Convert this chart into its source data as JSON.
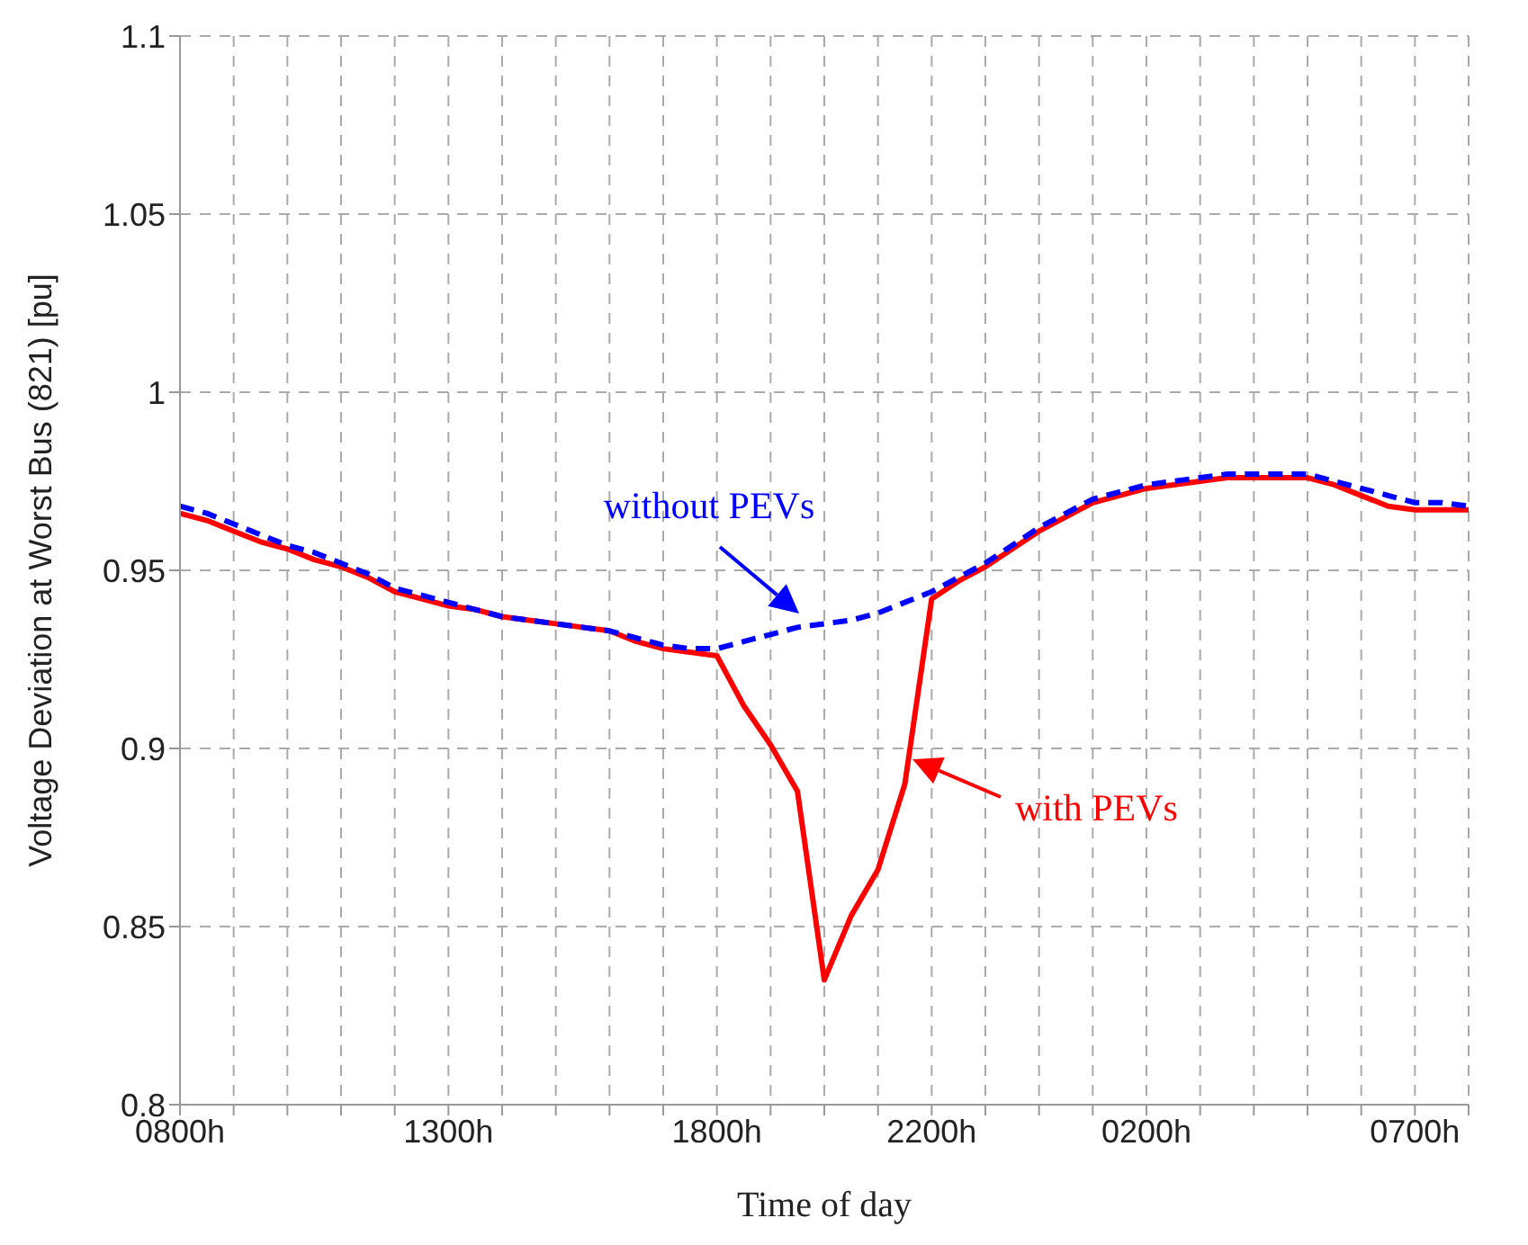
{
  "chart_data": {
    "type": "line",
    "xlabel": "Time of day",
    "ylabel": "Voltage Deviation at Worst Bus (821) [pu]",
    "categories": [
      "0800h",
      null,
      null,
      null,
      null,
      null,
      null,
      null,
      null,
      null,
      "1300h",
      null,
      null,
      null,
      null,
      null,
      null,
      null,
      null,
      null,
      "1800h",
      null,
      null,
      null,
      null,
      null,
      null,
      null,
      "2200h",
      null,
      null,
      null,
      null,
      null,
      null,
      null,
      "0200h",
      null,
      null,
      null,
      null,
      null,
      null,
      null,
      null,
      null,
      "0700h",
      null,
      null
    ],
    "ylim": [
      0.8,
      1.1
    ],
    "yticks": [
      0.8,
      0.85,
      0.9,
      0.95,
      1,
      1.05,
      1.1
    ],
    "grid": true,
    "legend": false,
    "marker": "none",
    "series": [
      {
        "color": "#ff0000",
        "line_style": "solid",
        "values": [
          0.966,
          0.964,
          0.961,
          0.958,
          0.956,
          0.953,
          0.951,
          0.948,
          0.944,
          0.942,
          0.94,
          0.939,
          0.937,
          0.936,
          0.935,
          0.934,
          0.933,
          0.93,
          0.928,
          0.927,
          0.926,
          0.912,
          0.901,
          0.888,
          0.835,
          0.853,
          0.866,
          0.89,
          0.942,
          0.947,
          0.951,
          0.956,
          0.961,
          0.965,
          0.969,
          0.971,
          0.973,
          0.974,
          0.975,
          0.976,
          0.976,
          0.976,
          0.976,
          0.974,
          0.971,
          0.968,
          0.967,
          0.967,
          0.967
        ]
      },
      {
        "color": "#0000ff",
        "line_style": "dashed",
        "values": [
          0.968,
          0.966,
          0.963,
          0.96,
          0.957,
          0.955,
          0.952,
          0.949,
          0.945,
          0.943,
          0.941,
          0.939,
          0.937,
          0.936,
          0.935,
          0.934,
          0.933,
          0.931,
          0.929,
          0.928,
          0.928,
          0.93,
          0.932,
          0.934,
          0.935,
          0.936,
          0.938,
          0.941,
          0.944,
          0.948,
          0.952,
          0.957,
          0.962,
          0.966,
          0.97,
          0.972,
          0.974,
          0.975,
          0.976,
          0.977,
          0.977,
          0.977,
          0.977,
          0.975,
          0.973,
          0.971,
          0.969,
          0.969,
          0.968
        ]
      }
    ],
    "annotations": [
      "with PEVs",
      "without PEVs"
    ]
  }
}
